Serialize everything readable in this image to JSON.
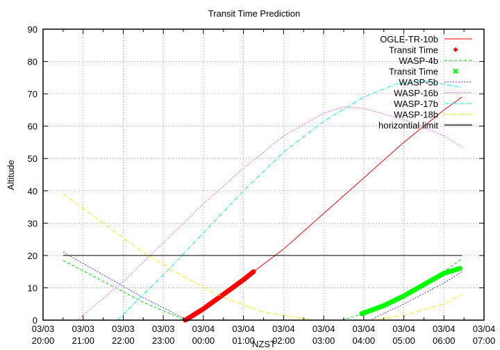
{
  "chart_data": {
    "type": "line",
    "title": "Transit Time Prediction",
    "xlabel": "NZST",
    "ylabel": "Altitude",
    "ylim": [
      0,
      90
    ],
    "yticks": [
      0,
      10,
      20,
      30,
      40,
      50,
      60,
      70,
      80,
      90
    ],
    "xticks": [
      {
        "date": "03/03",
        "time": "20:00"
      },
      {
        "date": "03/03",
        "time": "21:00"
      },
      {
        "date": "03/03",
        "time": "22:00"
      },
      {
        "date": "03/03",
        "time": "23:00"
      },
      {
        "date": "03/04",
        "time": "00:00"
      },
      {
        "date": "03/04",
        "time": "01:00"
      },
      {
        "date": "03/04",
        "time": "02:00"
      },
      {
        "date": "03/04",
        "time": "03:00"
      },
      {
        "date": "03/04",
        "time": "04:00"
      },
      {
        "date": "03/04",
        "time": "05:00"
      },
      {
        "date": "03/04",
        "time": "06:00"
      },
      {
        "date": "03/04",
        "time": "07:00"
      }
    ],
    "x_unit": "hours since 03/03 20:00",
    "xlim": [
      0,
      11
    ],
    "grid": true,
    "legend_position": "top-right",
    "series": [
      {
        "name": "OGLE-TR-10b",
        "color": "#ff0000",
        "style": "solid",
        "points": [
          [
            3.55,
            0
          ],
          [
            4.5,
            8
          ],
          [
            5.25,
            15
          ],
          [
            6,
            22
          ],
          [
            7,
            33
          ],
          [
            8,
            44
          ],
          [
            9,
            55
          ],
          [
            10,
            65
          ],
          [
            10.45,
            69
          ]
        ]
      },
      {
        "name": "Transit Time",
        "color": "#ff0000",
        "style": "thick-points",
        "of": "OGLE-TR-10b",
        "points": [
          [
            3.55,
            0
          ],
          [
            4.0,
            3.5
          ],
          [
            4.5,
            8
          ],
          [
            5.0,
            12.5
          ],
          [
            5.25,
            15
          ]
        ]
      },
      {
        "name": "WASP-4b",
        "color": "#00dd00",
        "style": "dashed",
        "points": [
          [
            0.5,
            18.5
          ],
          [
            1.5,
            12
          ],
          [
            2.5,
            5.5
          ],
          [
            3.55,
            0
          ],
          [
            null,
            null
          ],
          [
            7.45,
            0
          ],
          [
            8,
            2
          ],
          [
            9,
            8
          ],
          [
            10,
            15
          ],
          [
            10.45,
            19
          ]
        ]
      },
      {
        "name": "Transit Time",
        "color": "#00ff00",
        "style": "thick-points",
        "of": "WASP-4b",
        "points": [
          [
            7.95,
            2
          ],
          [
            8.5,
            4.5
          ],
          [
            9,
            7.5
          ],
          [
            9.5,
            11
          ],
          [
            10,
            14.5
          ],
          [
            10.4,
            16
          ]
        ]
      },
      {
        "name": "WASP-5b",
        "color": "#3333ff",
        "style": "dotted",
        "points": [
          [
            0.5,
            21
          ],
          [
            1.5,
            14
          ],
          [
            2.5,
            7
          ],
          [
            3.6,
            0
          ],
          [
            null,
            null
          ],
          [
            8.15,
            0
          ],
          [
            9,
            5
          ],
          [
            10,
            11.5
          ],
          [
            10.45,
            15
          ]
        ]
      },
      {
        "name": "WASP-16b",
        "color": "#ff55ff",
        "style": "dotted",
        "points": [
          [
            0.85,
            0
          ],
          [
            2,
            12
          ],
          [
            3,
            24
          ],
          [
            4,
            36
          ],
          [
            5,
            47
          ],
          [
            6,
            57
          ],
          [
            7,
            64
          ],
          [
            7.5,
            66
          ],
          [
            8,
            65.5
          ],
          [
            9,
            62
          ],
          [
            10,
            57
          ],
          [
            10.45,
            53.5
          ]
        ]
      },
      {
        "name": "WASP-17b",
        "color": "#00eeee",
        "style": "dash-dot",
        "points": [
          [
            1.85,
            0
          ],
          [
            3,
            14
          ],
          [
            4,
            27
          ],
          [
            5,
            40
          ],
          [
            6,
            52
          ],
          [
            7,
            61.5
          ],
          [
            8,
            69
          ],
          [
            8.8,
            73
          ],
          [
            9.5,
            74
          ],
          [
            10.45,
            72
          ]
        ]
      },
      {
        "name": "WASP-18b",
        "color": "#eeee00",
        "style": "dash-dot",
        "points": [
          [
            0.5,
            39
          ],
          [
            1.5,
            30
          ],
          [
            2.5,
            21
          ],
          [
            3.5,
            13.5
          ],
          [
            4.5,
            7
          ],
          [
            5.5,
            2.5
          ],
          [
            6.75,
            0
          ],
          [
            null,
            null
          ],
          [
            8.2,
            0
          ],
          [
            9,
            1.5
          ],
          [
            10,
            5
          ],
          [
            10.45,
            8
          ]
        ]
      },
      {
        "name": "horizontial limit",
        "color": "#000000",
        "style": "solid",
        "points": [
          [
            0.5,
            20
          ],
          [
            10.45,
            20
          ]
        ]
      }
    ]
  }
}
